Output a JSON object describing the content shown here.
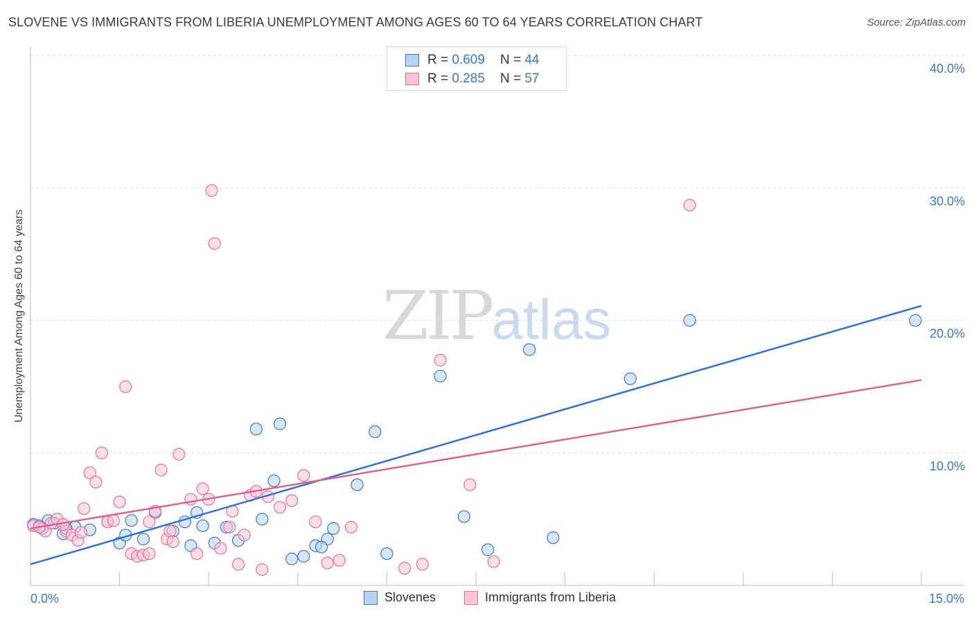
{
  "title": "SLOVENE VS IMMIGRANTS FROM LIBERIA UNEMPLOYMENT AMONG AGES 60 TO 64 YEARS CORRELATION CHART",
  "source": "Source: ZipAtlas.com",
  "watermark": {
    "zip": "ZIP",
    "atlas": "atlas"
  },
  "legend": {
    "rows": [
      {
        "r_label": "R =",
        "r_value": "0.609",
        "n_label": "N =",
        "n_value": "44"
      },
      {
        "r_label": "R =",
        "r_value": "0.285",
        "n_label": "N =",
        "n_value": "57"
      }
    ]
  },
  "colors": {
    "blue": "#3a78c9",
    "blue_fill": "#b8d3f3",
    "blue_line": "#2f72d0",
    "pink": "#e8709a",
    "pink_fill": "#f8c3d4",
    "pink_line": "#e06090",
    "grid": "#dddddd",
    "axis": "#bbbbbb"
  },
  "chart_data": {
    "type": "scatter",
    "title": "SLOVENE VS IMMIGRANTS FROM LIBERIA UNEMPLOYMENT AMONG AGES 60 TO 64 YEARS CORRELATION CHART",
    "xlabel": "",
    "ylabel": "Unemployment Among Ages 60 to 64 years",
    "xlim": [
      0,
      15
    ],
    "ylim": [
      0,
      40
    ],
    "x_tick_labels": {
      "min": "0.0%",
      "max": "15.0%"
    },
    "y_ticks": [
      {
        "value": 10,
        "label": "10.0%"
      },
      {
        "value": 20,
        "label": "20.0%"
      },
      {
        "value": 30,
        "label": "30.0%"
      },
      {
        "value": 40,
        "label": "40.0%"
      }
    ],
    "series": [
      {
        "name": "Slovenes",
        "color": "blue",
        "trend": {
          "x": [
            0,
            15
          ],
          "y": [
            1.6,
            21.1
          ]
        },
        "points": [
          [
            0.05,
            4.6
          ],
          [
            0.15,
            4.5
          ],
          [
            0.3,
            4.9
          ],
          [
            0.4,
            4.7
          ],
          [
            0.55,
            3.9
          ],
          [
            0.75,
            4.4
          ],
          [
            1.3,
            4.8
          ],
          [
            1.5,
            3.2
          ],
          [
            1.6,
            3.8
          ],
          [
            1.7,
            4.9
          ],
          [
            1.9,
            3.5
          ],
          [
            2.1,
            5.5
          ],
          [
            2.4,
            4.1
          ],
          [
            2.6,
            4.8
          ],
          [
            2.9,
            4.5
          ],
          [
            2.8,
            5.5
          ],
          [
            3.1,
            3.2
          ],
          [
            3.3,
            4.4
          ],
          [
            3.5,
            3.4
          ],
          [
            3.9,
            5.0
          ],
          [
            3.8,
            11.8
          ],
          [
            4.1,
            7.9
          ],
          [
            4.2,
            12.2
          ],
          [
            4.4,
            2.0
          ],
          [
            4.6,
            2.2
          ],
          [
            4.8,
            3.0
          ],
          [
            5.1,
            4.3
          ],
          [
            5.0,
            3.5
          ],
          [
            5.5,
            7.6
          ],
          [
            5.8,
            11.6
          ],
          [
            6.0,
            2.4
          ],
          [
            6.9,
            15.8
          ],
          [
            7.3,
            5.2
          ],
          [
            7.7,
            2.7
          ],
          [
            8.4,
            17.8
          ],
          [
            8.8,
            3.6
          ],
          [
            10.1,
            15.6
          ],
          [
            11.1,
            20.0
          ],
          [
            14.9,
            20.0
          ],
          [
            0.6,
            4.3
          ],
          [
            1.0,
            4.2
          ],
          [
            2.7,
            3.0
          ],
          [
            4.9,
            2.9
          ],
          [
            0.2,
            4.3
          ]
        ]
      },
      {
        "name": "Immigrants from Liberia",
        "color": "pink",
        "trend": {
          "x": [
            0,
            15
          ],
          "y": [
            4.3,
            15.5
          ]
        },
        "points": [
          [
            0.05,
            4.5
          ],
          [
            0.25,
            4.1
          ],
          [
            0.35,
            4.7
          ],
          [
            0.45,
            5.0
          ],
          [
            0.6,
            4.1
          ],
          [
            0.7,
            3.8
          ],
          [
            0.8,
            3.4
          ],
          [
            0.9,
            5.8
          ],
          [
            1.0,
            8.5
          ],
          [
            1.2,
            10.0
          ],
          [
            1.1,
            7.8
          ],
          [
            1.3,
            4.8
          ],
          [
            1.5,
            6.3
          ],
          [
            1.6,
            15.0
          ],
          [
            1.7,
            2.4
          ],
          [
            1.8,
            2.2
          ],
          [
            1.9,
            2.3
          ],
          [
            2.0,
            4.8
          ],
          [
            2.1,
            5.6
          ],
          [
            2.2,
            8.7
          ],
          [
            2.3,
            3.5
          ],
          [
            2.35,
            4.1
          ],
          [
            2.4,
            3.3
          ],
          [
            2.5,
            9.9
          ],
          [
            2.7,
            6.5
          ],
          [
            2.9,
            7.3
          ],
          [
            3.0,
            6.5
          ],
          [
            2.8,
            2.4
          ],
          [
            3.05,
            29.8
          ],
          [
            3.1,
            25.8
          ],
          [
            3.2,
            2.8
          ],
          [
            3.35,
            4.4
          ],
          [
            3.4,
            5.6
          ],
          [
            3.5,
            1.6
          ],
          [
            3.7,
            6.8
          ],
          [
            3.8,
            7.1
          ],
          [
            3.9,
            1.2
          ],
          [
            4.0,
            6.7
          ],
          [
            4.2,
            5.9
          ],
          [
            4.4,
            6.4
          ],
          [
            4.6,
            8.3
          ],
          [
            4.8,
            4.8
          ],
          [
            5.0,
            1.7
          ],
          [
            5.2,
            1.9
          ],
          [
            5.4,
            4.4
          ],
          [
            6.3,
            1.3
          ],
          [
            6.6,
            1.6
          ],
          [
            6.9,
            17.0
          ],
          [
            7.4,
            7.6
          ],
          [
            7.8,
            1.8
          ],
          [
            11.1,
            28.7
          ],
          [
            1.4,
            4.9
          ],
          [
            0.85,
            4.0
          ],
          [
            0.55,
            4.6
          ],
          [
            2.0,
            2.4
          ],
          [
            3.6,
            3.8
          ],
          [
            0.15,
            4.4
          ]
        ]
      }
    ]
  }
}
